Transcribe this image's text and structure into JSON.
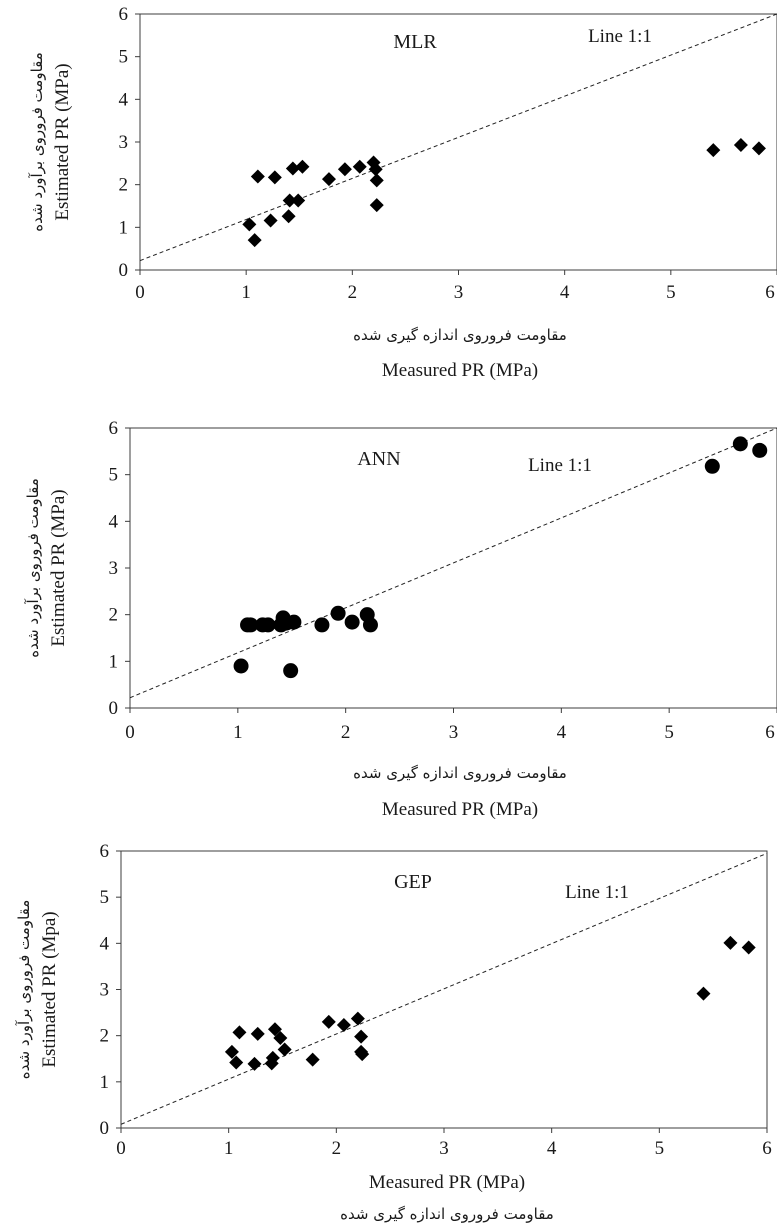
{
  "chart_data": [
    {
      "type": "scatter",
      "title": "MLR",
      "annotation": "Line 1:1",
      "marker": "diamond",
      "xlabel_en": "Measured PR (MPa)",
      "xlabel_fa": "مقاومت فروروی اندازه گیری شده",
      "ylabel_en": "Estimated PR (MPa)",
      "ylabel_fa": "مقاومت فروروی برآورد شده",
      "xlim": [
        0,
        6
      ],
      "ylim": [
        0,
        6
      ],
      "ticks": [
        "0",
        "1",
        "2",
        "3",
        "4",
        "5",
        "6"
      ],
      "reference_line": {
        "x": [
          0,
          6
        ],
        "y": [
          0.22,
          6.0
        ]
      },
      "points": [
        {
          "x": 1.03,
          "y": 1.07
        },
        {
          "x": 1.08,
          "y": 0.7
        },
        {
          "x": 1.11,
          "y": 2.19
        },
        {
          "x": 1.23,
          "y": 1.16
        },
        {
          "x": 1.27,
          "y": 2.17
        },
        {
          "x": 1.4,
          "y": 1.26
        },
        {
          "x": 1.41,
          "y": 1.63
        },
        {
          "x": 1.44,
          "y": 2.38
        },
        {
          "x": 1.49,
          "y": 1.63
        },
        {
          "x": 1.53,
          "y": 2.42
        },
        {
          "x": 1.78,
          "y": 2.13
        },
        {
          "x": 1.93,
          "y": 2.36
        },
        {
          "x": 2.07,
          "y": 2.42
        },
        {
          "x": 2.2,
          "y": 2.52
        },
        {
          "x": 2.22,
          "y": 2.36
        },
        {
          "x": 2.23,
          "y": 2.1
        },
        {
          "x": 2.23,
          "y": 1.52
        },
        {
          "x": 5.4,
          "y": 2.81
        },
        {
          "x": 5.66,
          "y": 2.93
        },
        {
          "x": 5.83,
          "y": 2.85
        }
      ]
    },
    {
      "type": "scatter",
      "title": "ANN",
      "annotation": "Line 1:1",
      "marker": "circle",
      "xlabel_en": "Measured PR (MPa)",
      "xlabel_fa": "مقاومت فروروی اندازه گیری شده",
      "ylabel_en": "Estimated PR (MPa)",
      "ylabel_fa": "مقاومت فروروی برآورد شده",
      "xlim": [
        0,
        6
      ],
      "ylim": [
        0,
        6
      ],
      "ticks": [
        "0",
        "1",
        "2",
        "3",
        "4",
        "5",
        "6"
      ],
      "reference_line": {
        "x": [
          0,
          6
        ],
        "y": [
          0.22,
          6.0
        ]
      },
      "points": [
        {
          "x": 1.03,
          "y": 0.9
        },
        {
          "x": 1.09,
          "y": 1.78
        },
        {
          "x": 1.12,
          "y": 1.78
        },
        {
          "x": 1.23,
          "y": 1.78
        },
        {
          "x": 1.28,
          "y": 1.78
        },
        {
          "x": 1.4,
          "y": 1.78
        },
        {
          "x": 1.42,
          "y": 1.93
        },
        {
          "x": 1.45,
          "y": 1.82
        },
        {
          "x": 1.49,
          "y": 0.8
        },
        {
          "x": 1.52,
          "y": 1.84
        },
        {
          "x": 1.78,
          "y": 1.78
        },
        {
          "x": 1.93,
          "y": 2.03
        },
        {
          "x": 2.06,
          "y": 1.84
        },
        {
          "x": 2.2,
          "y": 2.0
        },
        {
          "x": 2.23,
          "y": 1.78
        },
        {
          "x": 5.4,
          "y": 5.18
        },
        {
          "x": 5.66,
          "y": 5.66
        },
        {
          "x": 5.84,
          "y": 5.52
        }
      ]
    },
    {
      "type": "scatter",
      "title": "GEP",
      "annotation": "Line 1:1",
      "marker": "diamond",
      "xlabel_en": "Measured PR (MPa)",
      "xlabel_fa": "مقاومت فروروی اندازه گیری شده",
      "ylabel_en": "Estimated PR (Mpa)",
      "ylabel_fa": "مقاومت فروروی برآورد شده",
      "xlim": [
        0,
        6
      ],
      "ylim": [
        0,
        6
      ],
      "ticks": [
        "0",
        "1",
        "2",
        "3",
        "4",
        "5",
        "6"
      ],
      "reference_line": {
        "x": [
          0,
          6
        ],
        "y": [
          0.08,
          5.95
        ]
      },
      "points": [
        {
          "x": 1.03,
          "y": 1.65
        },
        {
          "x": 1.07,
          "y": 1.42
        },
        {
          "x": 1.1,
          "y": 2.07
        },
        {
          "x": 1.24,
          "y": 1.39
        },
        {
          "x": 1.27,
          "y": 2.04
        },
        {
          "x": 1.4,
          "y": 1.4
        },
        {
          "x": 1.41,
          "y": 1.52
        },
        {
          "x": 1.43,
          "y": 2.14
        },
        {
          "x": 1.48,
          "y": 1.95
        },
        {
          "x": 1.52,
          "y": 1.7
        },
        {
          "x": 1.78,
          "y": 1.48
        },
        {
          "x": 1.93,
          "y": 2.3
        },
        {
          "x": 2.07,
          "y": 2.23
        },
        {
          "x": 2.2,
          "y": 2.37
        },
        {
          "x": 2.23,
          "y": 1.98
        },
        {
          "x": 2.23,
          "y": 1.65
        },
        {
          "x": 2.24,
          "y": 1.6
        },
        {
          "x": 5.41,
          "y": 2.91
        },
        {
          "x": 5.66,
          "y": 4.01
        },
        {
          "x": 5.83,
          "y": 3.91
        }
      ]
    }
  ]
}
